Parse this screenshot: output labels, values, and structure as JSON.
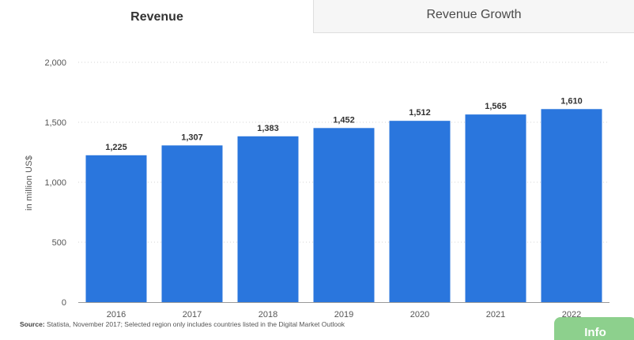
{
  "tabs": [
    {
      "label": "Revenue",
      "active": true
    },
    {
      "label": "Revenue Growth",
      "active": false
    }
  ],
  "chart_data": {
    "type": "bar",
    "title": "",
    "xlabel": "",
    "ylabel": "in million US$",
    "categories": [
      "2016",
      "2017",
      "2018",
      "2019",
      "2020",
      "2021",
      "2022"
    ],
    "values": [
      1225,
      1307,
      1383,
      1452,
      1512,
      1565,
      1610
    ],
    "value_labels": [
      "1,225",
      "1,307",
      "1,383",
      "1,452",
      "1,512",
      "1,565",
      "1,610"
    ],
    "ylim": [
      0,
      2000
    ],
    "yticks": [
      0,
      500,
      1000,
      1500,
      2000
    ],
    "ytick_labels": [
      "0",
      "500",
      "1,000",
      "1,500",
      "2,000"
    ],
    "grid": true,
    "bar_color": "#2a76dd"
  },
  "source": {
    "label": "Source:",
    "text": "Statista, November 2017; Selected region only includes countries listed in the Digital Market Outlook"
  },
  "info_button": {
    "label": "Info"
  },
  "colors": {
    "accent_green": "#8dd08d",
    "bar_blue": "#2a76dd"
  }
}
